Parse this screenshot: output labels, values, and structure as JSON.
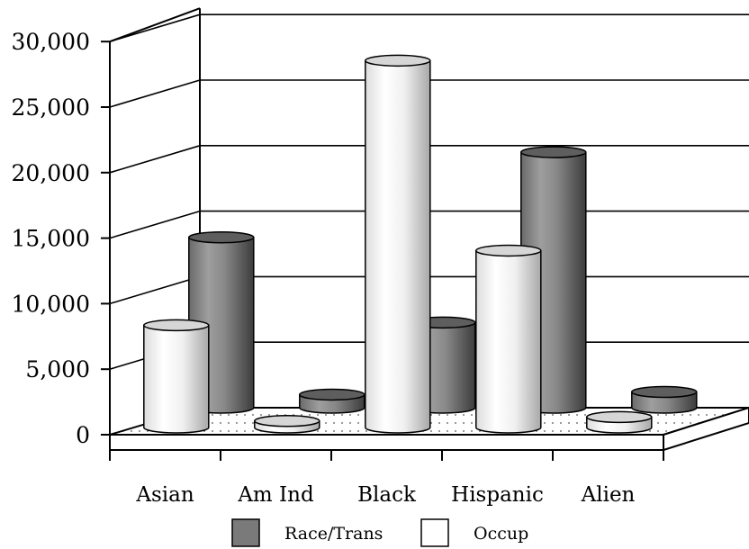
{
  "chart_data": {
    "type": "bar",
    "style": "3d-cylinder",
    "categories": [
      "Asian",
      "Am Ind",
      "Black",
      "Hispanic",
      "Alien"
    ],
    "series": [
      {
        "name": "Race/Trans",
        "color": "#7a7a7a",
        "values": [
          13000,
          1000,
          6500,
          19500,
          1200
        ]
      },
      {
        "name": "Occup",
        "color": "#f2f2f2",
        "values": [
          7800,
          500,
          28000,
          13500,
          800
        ]
      }
    ],
    "ylim": [
      0,
      30000
    ],
    "yticks": [
      "0",
      "5,000",
      "10,000",
      "15,000",
      "20,000",
      "25,000",
      "30,000"
    ],
    "grid": true,
    "legend_position": "bottom"
  }
}
